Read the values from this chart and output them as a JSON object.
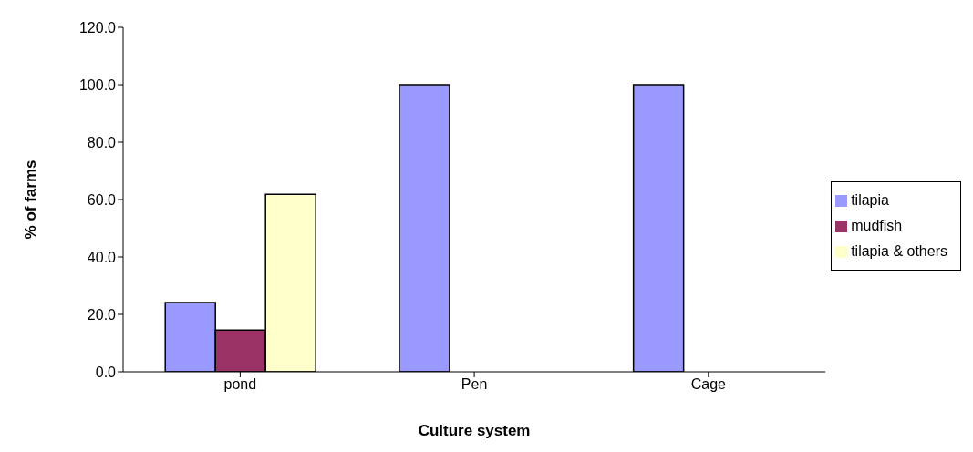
{
  "chart_data": {
    "type": "bar",
    "xlabel": "Culture system",
    "ylabel": "% of farms",
    "categories": [
      "pond",
      "Pen",
      "Cage"
    ],
    "series": [
      {
        "name": "tilapia",
        "color": "#9999ff",
        "values": [
          24.1,
          100,
          100
        ]
      },
      {
        "name": "mudfish",
        "color": "#993366",
        "values": [
          14.5,
          null,
          null
        ]
      },
      {
        "name": "tilapia & others",
        "color": "#ffffcc",
        "values": [
          61.8,
          null,
          null
        ]
      }
    ],
    "ylim": [
      0,
      120
    ],
    "yticks": [
      {
        "value": 0,
        "label": "0.0"
      },
      {
        "value": 20,
        "label": "20.0"
      },
      {
        "value": 40,
        "label": "40.0"
      },
      {
        "value": 60,
        "label": "60.0"
      },
      {
        "value": 80,
        "label": "80.0"
      },
      {
        "value": 100,
        "label": "100.0"
      },
      {
        "value": 120,
        "label": "120.0"
      }
    ],
    "grid": false,
    "legend": "right"
  }
}
